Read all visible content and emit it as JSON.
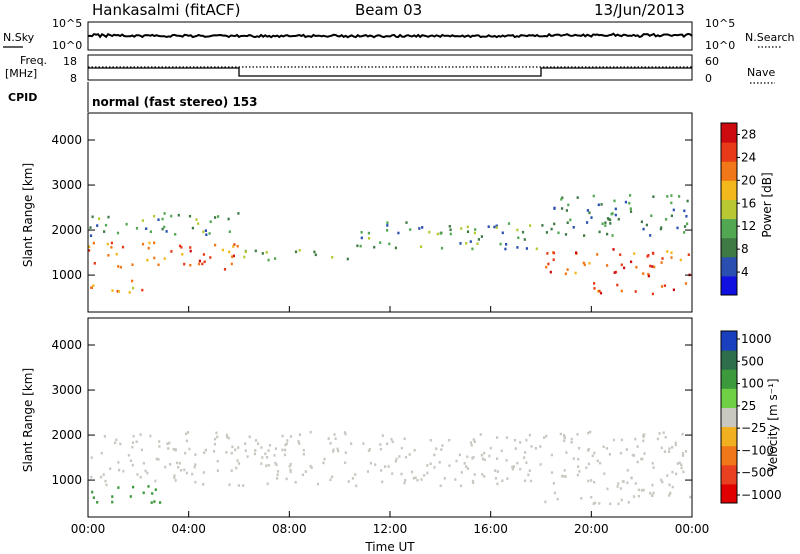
{
  "header": {
    "station": "Hankasalmi (fitACF)",
    "beam": "Beam 03",
    "date": "13/Jun/2013"
  },
  "strips": {
    "nsky_label": "N.Sky",
    "nsky_ticks": [
      "10^5",
      "10^0"
    ],
    "nsearch_label": "N.Search",
    "nsearch_ticks": [
      "10^5",
      "10^0"
    ],
    "freq_label_1": "Freq.",
    "freq_label_2": "[MHz]",
    "freq_ticks": [
      "18",
      "8"
    ],
    "nave_label": "Nave",
    "nave_ticks": [
      "60",
      "0"
    ],
    "cpid_label": "CPID",
    "cpid_value": "normal (fast stereo) 153"
  },
  "chart_data": [
    {
      "type": "heatmap",
      "quantity": "Power",
      "ylabel": "Slant Range [km]",
      "ylim": [
        180,
        4600
      ],
      "yticks": [
        "1000",
        "2000",
        "3000",
        "4000"
      ],
      "colorbar_label": "Power [dB]",
      "colorbar_ticks": [
        "4",
        "8",
        "12",
        "16",
        "20",
        "24",
        "28"
      ],
      "colorbar_range": [
        0,
        30
      ],
      "colors": [
        "#1010e0",
        "#2a4fb0",
        "#3f7a45",
        "#52a852",
        "#b8c832",
        "#f2b81c",
        "#f07818",
        "#e83a18",
        "#cc0a10"
      ],
      "echo_bands": [
        {
          "x": [
            0,
            6
          ],
          "range_km": [
            1150,
            1750
          ],
          "value": 22
        },
        {
          "x": [
            0,
            2.7
          ],
          "range_km": [
            600,
            900
          ],
          "value": 20
        },
        {
          "x": [
            0,
            6
          ],
          "range_km": [
            1900,
            2400
          ],
          "value": 10
        },
        {
          "x": [
            6,
            10.5
          ],
          "range_km": [
            1350,
            1600
          ],
          "value": 12
        },
        {
          "x": [
            10.5,
            18
          ],
          "range_km": [
            1600,
            2200
          ],
          "value": 10
        },
        {
          "x": [
            18,
            24
          ],
          "range_km": [
            1000,
            1600
          ],
          "value": 24
        },
        {
          "x": [
            20,
            24
          ],
          "range_km": [
            600,
            850
          ],
          "value": 24
        },
        {
          "x": [
            18,
            24
          ],
          "range_km": [
            1900,
            2800
          ],
          "value": 8
        }
      ]
    },
    {
      "type": "heatmap",
      "quantity": "Velocity",
      "xlabel": "Time UT",
      "ylabel": "Slant Range [km]",
      "xlim": [
        0,
        24
      ],
      "xticks": [
        "00:00",
        "04:00",
        "08:00",
        "12:00",
        "16:00",
        "20:00",
        "00:00"
      ],
      "ylim": [
        180,
        4600
      ],
      "yticks": [
        "1000",
        "2000",
        "3000",
        "4000"
      ],
      "colorbar_label": "Velocity [m s⁻¹]",
      "colorbar_ticks": [
        "1000",
        "500",
        "100",
        "25",
        "−25",
        "−100",
        "−500",
        "−1000"
      ],
      "colors": [
        "#1a3fbf",
        "#2e6e4a",
        "#3c9a3c",
        "#6fd046",
        "#c8c8c0",
        "#f0b020",
        "#f07818",
        "#e84020",
        "#e00000"
      ],
      "echo_bands": [
        {
          "x": [
            0,
            3
          ],
          "range_km": [
            500,
            900
          ],
          "value": 150
        },
        {
          "x": [
            0,
            24
          ],
          "range_km": [
            900,
            2100
          ],
          "value": 0
        },
        {
          "x": [
            18,
            24
          ],
          "range_km": [
            500,
            900
          ],
          "value": 0
        }
      ]
    }
  ]
}
